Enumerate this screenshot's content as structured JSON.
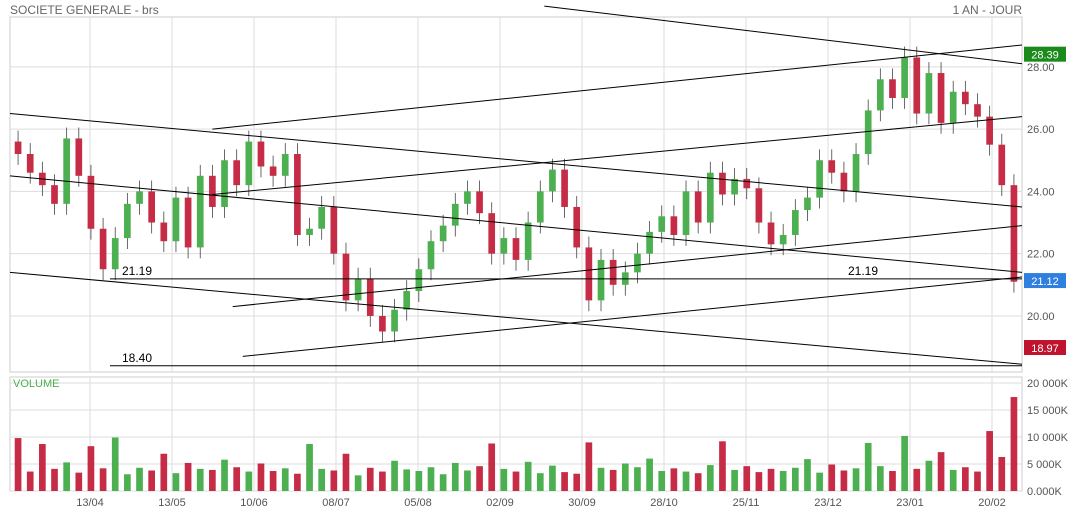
{
  "header": {
    "title": "SOCIETE GENERALE - brs",
    "period": "1 AN - JOUR"
  },
  "colors": {
    "up": "#4caf50",
    "down": "#c62c46",
    "line": "#000000",
    "grid": "#dddddd",
    "badge_high": "#1a8a1a",
    "badge_last": "#2f7fe0",
    "badge_low": "#c0142e",
    "volume_label": "#4caf50"
  },
  "chart_data": {
    "type": "candlestick",
    "title": "SOCIETE GENERALE - brs",
    "period": "1 AN - JOUR",
    "x_ticks": [
      "13/04",
      "13/05",
      "10/06",
      "08/07",
      "05/08",
      "02/09",
      "30/09",
      "28/10",
      "25/11",
      "23/12",
      "23/01",
      "20/02"
    ],
    "price_axis": {
      "ticks": [
        "20.00",
        "22.00",
        "24.00",
        "26.00",
        "28.00"
      ],
      "range": [
        18.2,
        29.6
      ],
      "grid": true
    },
    "volume_axis": {
      "label": "VOLUME",
      "ticks": [
        "0.000K",
        "5 000K",
        "10 000K",
        "15 000K",
        "20 000K"
      ],
      "range": [
        0,
        20000
      ]
    },
    "badges": {
      "high": "28.39",
      "last": "21.12",
      "low": "18.97"
    },
    "levels": [
      {
        "value": 21.19,
        "labels": [
          "21.19",
          "21.19"
        ]
      },
      {
        "value": 18.4,
        "labels": [
          "18.40"
        ]
      }
    ],
    "trendlines": [
      {
        "x1": 0.528,
        "y1": 29.95,
        "x2": 1.0,
        "y2": 28.1
      },
      {
        "x1": 0.2,
        "y1": 26.0,
        "x2": 1.0,
        "y2": 28.7
      },
      {
        "x1": 0.0,
        "y1": 26.5,
        "x2": 1.0,
        "y2": 23.5
      },
      {
        "x1": 0.2,
        "y1": 23.9,
        "x2": 1.0,
        "y2": 26.4
      },
      {
        "x1": 0.0,
        "y1": 24.5,
        "x2": 1.0,
        "y2": 21.4
      },
      {
        "x1": 0.22,
        "y1": 20.3,
        "x2": 1.0,
        "y2": 22.9
      },
      {
        "x1": 0.0,
        "y1": 21.4,
        "x2": 1.0,
        "y2": 18.45
      },
      {
        "x1": 0.23,
        "y1": 18.7,
        "x2": 1.0,
        "y2": 21.25
      }
    ],
    "closes": [
      25.2,
      24.6,
      24.2,
      23.6,
      25.7,
      24.5,
      22.8,
      21.5,
      22.5,
      23.6,
      24.0,
      23.0,
      22.4,
      23.8,
      22.2,
      24.5,
      23.5,
      25.0,
      24.2,
      25.6,
      24.8,
      24.5,
      25.2,
      22.6,
      22.8,
      23.5,
      22.0,
      20.5,
      21.2,
      20.0,
      19.5,
      20.2,
      20.8,
      21.5,
      22.4,
      22.9,
      23.6,
      24.0,
      23.3,
      22.0,
      22.5,
      21.8,
      23.0,
      24.0,
      24.7,
      23.5,
      22.2,
      20.5,
      21.8,
      21.0,
      21.4,
      22.0,
      22.7,
      23.2,
      22.6,
      24.0,
      23.0,
      24.6,
      23.9,
      24.4,
      24.1,
      23.0,
      22.3,
      22.6,
      23.4,
      23.8,
      25.0,
      24.6,
      24.0,
      25.2,
      26.6,
      27.6,
      27.0,
      28.3,
      26.5,
      27.8,
      26.2,
      27.2,
      26.8,
      26.4,
      25.5,
      24.2,
      21.1
    ],
    "volumes": [
      9800,
      3600,
      8700,
      4100,
      5300,
      3400,
      8300,
      4200,
      9900,
      3100,
      4300,
      3800,
      6900,
      3300,
      5200,
      4100,
      3900,
      5800,
      4400,
      3600,
      5100,
      3700,
      4200,
      3200,
      8700,
      4100,
      3800,
      6900,
      2900,
      4300,
      3600,
      5600,
      4000,
      3700,
      4400,
      3100,
      5200,
      3800,
      4600,
      8800,
      4100,
      3600,
      5400,
      3300,
      4700,
      3500,
      3200,
      9000,
      4300,
      3900,
      5100,
      4400,
      6000,
      3700,
      4200,
      3600,
      3300,
      4800,
      9200,
      3900,
      4600,
      3500,
      4100,
      3700,
      4300,
      5900,
      3400,
      4900,
      3800,
      4200,
      8900,
      4600,
      3700,
      10200,
      4100,
      5600,
      7200,
      3900,
      4400,
      3600,
      11100,
      6300,
      17400
    ]
  }
}
